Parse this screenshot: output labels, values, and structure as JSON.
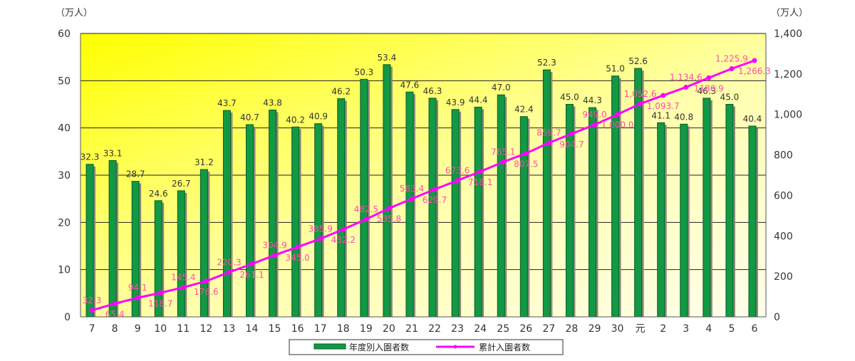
{
  "chart_data": {
    "type": "bar",
    "left_unit": "（万人）",
    "right_unit": "（万人）",
    "categories": [
      "7",
      "8",
      "9",
      "10",
      "11",
      "12",
      "13",
      "14",
      "15",
      "16",
      "17",
      "18",
      "19",
      "20",
      "21",
      "22",
      "23",
      "24",
      "25",
      "26",
      "27",
      "28",
      "29",
      "30",
      "元",
      "2",
      "3",
      "4",
      "5",
      "6"
    ],
    "left_ticks": [
      "0",
      "10",
      "20",
      "30",
      "40",
      "50",
      "60"
    ],
    "right_ticks": [
      "0",
      "200",
      "400",
      "600",
      "800",
      "1,000",
      "1,200",
      "1,400"
    ],
    "ylim_left": [
      0,
      60
    ],
    "ylim_right": [
      0,
      1400
    ],
    "series": [
      {
        "name": "年度別入園者数",
        "type": "bar",
        "axis": "left",
        "values": [
          32.3,
          33.1,
          28.7,
          24.6,
          26.7,
          31.2,
          43.7,
          40.7,
          43.8,
          40.2,
          40.9,
          46.2,
          50.3,
          53.4,
          47.6,
          46.3,
          43.9,
          44.4,
          47.0,
          42.4,
          52.3,
          45.0,
          44.3,
          51.0,
          52.6,
          41.1,
          40.8,
          46.3,
          45.0,
          40.4
        ],
        "labels": [
          "32.3",
          "33.1",
          "28.7",
          "24.6",
          "26.7",
          "31.2",
          "43.7",
          "40.7",
          "43.8",
          "40.2",
          "40.9",
          "46.2",
          "50.3",
          "53.4",
          "47.6",
          "46.3",
          "43.9",
          "44.4",
          "47.0",
          "42.4",
          "52.3",
          "45.0",
          "44.3",
          "51.0",
          "52.6",
          "41.1",
          "40.8",
          "46.3",
          "45.0",
          "40.4"
        ]
      },
      {
        "name": "累計入園者数",
        "type": "line",
        "axis": "right",
        "values": [
          32.3,
          65.4,
          94.1,
          118.7,
          145.4,
          176.6,
          220.3,
          261.1,
          304.9,
          345.0,
          385.9,
          432.2,
          482.5,
          535.8,
          583.4,
          629.7,
          673.6,
          718.1,
          765.1,
          807.5,
          859.7,
          904.7,
          949.0,
          1000.0,
          1052.6,
          1093.7,
          1134.6,
          1180.9,
          1225.9,
          1266.3
        ],
        "labels": [
          "32.3",
          "65.4",
          "94.1",
          "118.7",
          "145.4",
          "176.6",
          "220.3",
          "261.1",
          "304.9",
          "345.0",
          "385.9",
          "432.2",
          "482.5",
          "535.8",
          "583.4",
          "629.7",
          "673.6",
          "718.1",
          "765.1",
          "807.5",
          "859.7",
          "904.7",
          "949.0",
          "1,000.0",
          "1,052.6",
          "1,093.7",
          "1,134.6",
          "1180.9",
          "1,225.9",
          "1,266.3"
        ]
      }
    ],
    "legend_position": "bottom-center",
    "grid": true,
    "colors": {
      "bar": "#119944",
      "bar_edge": "#0a5c28",
      "bar_shadow": "#8a8a7a",
      "line": "#ff00ff",
      "line_label": "#ff4fa0",
      "grid": "#222222",
      "bg_top_left": "#ffff00",
      "bg_bottom_right": "#ffffee"
    }
  }
}
